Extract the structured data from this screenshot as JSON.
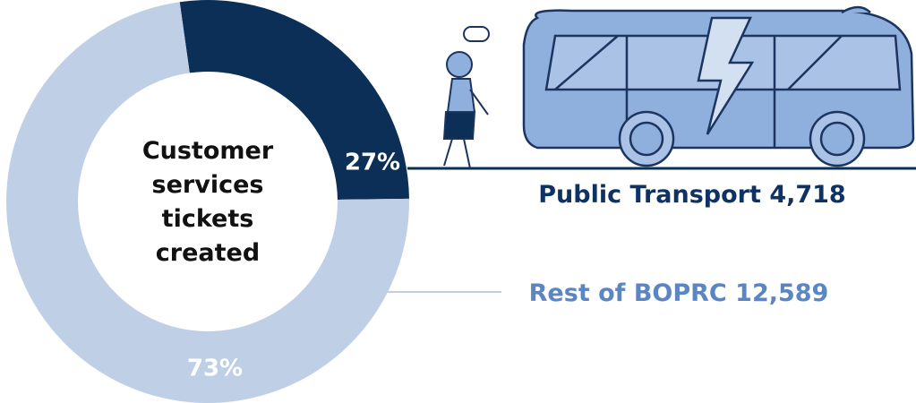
{
  "chart_data": {
    "type": "pie",
    "title": "Customer services tickets created",
    "categories": [
      "Public Transport",
      "Rest of BOPRC"
    ],
    "values": [
      27,
      73
    ],
    "value_labels": [
      "27%",
      "73%"
    ],
    "counts": [
      {
        "value": 4718,
        "label": "4,718"
      },
      {
        "value": 12589,
        "label": "12,589"
      }
    ],
    "colors": [
      "#0b2f57",
      "#bfcfe6"
    ],
    "label_colors": [
      "#0d3263",
      "#5b86c4"
    ]
  }
}
